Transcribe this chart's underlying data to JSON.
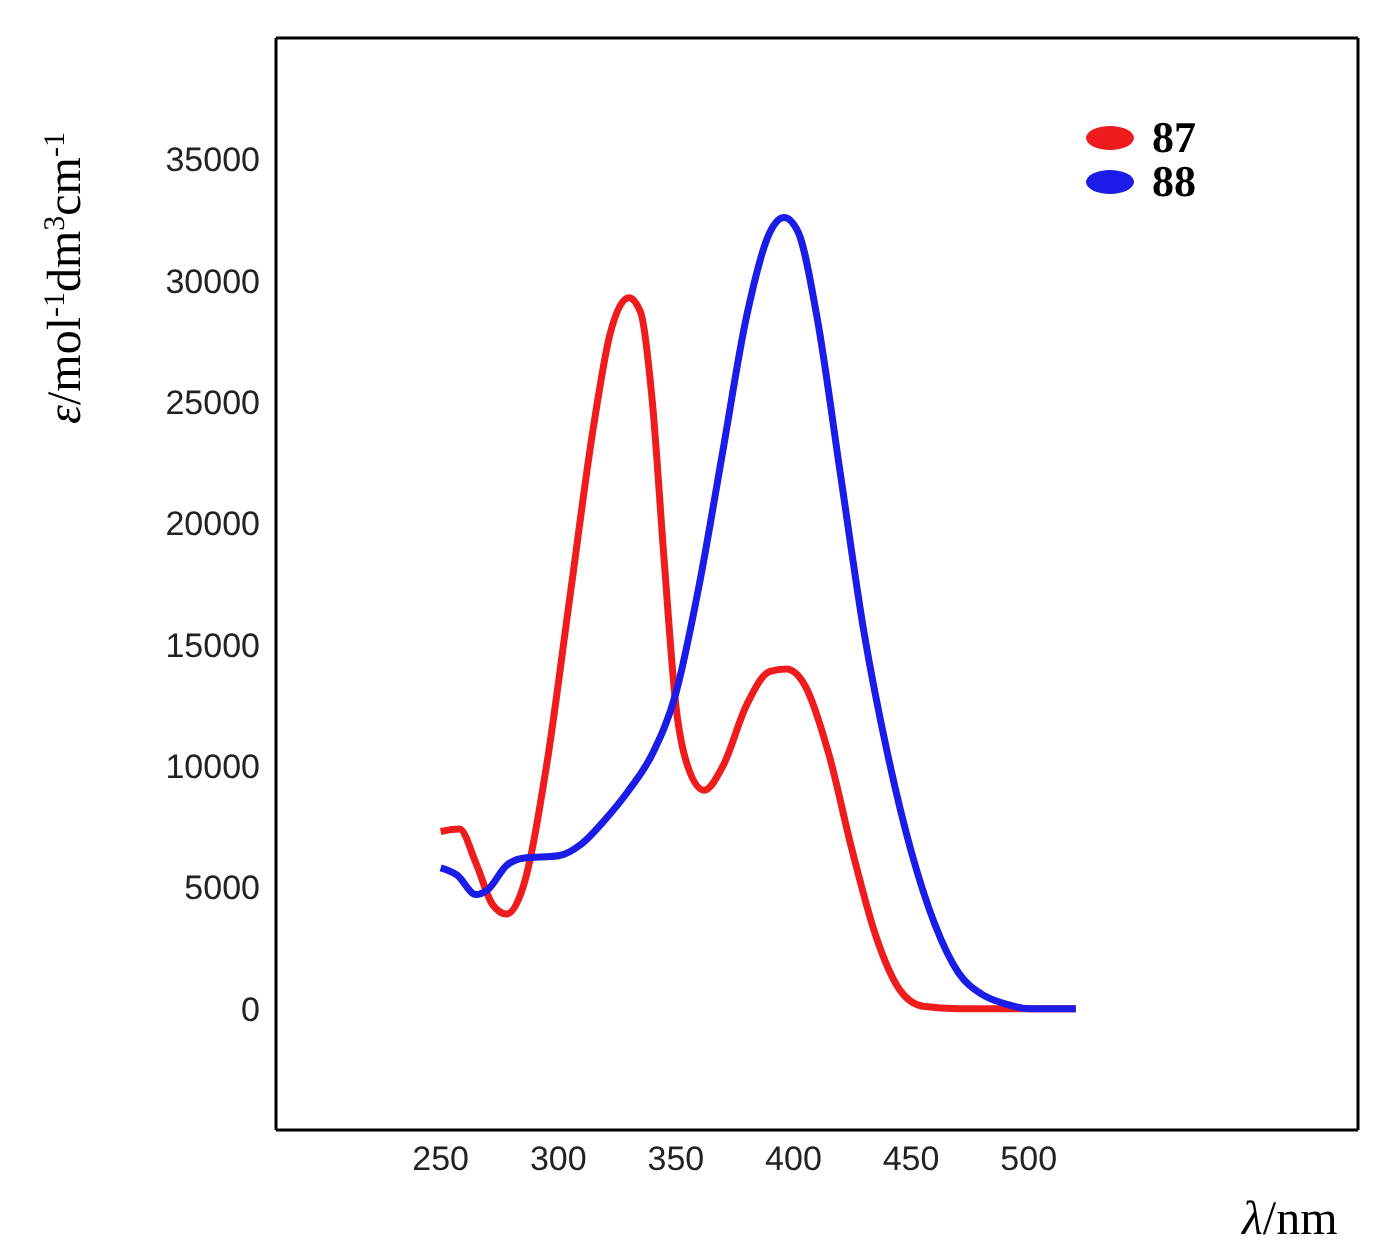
{
  "chart_data": {
    "type": "line",
    "xlabel": "λ/nm",
    "ylabel": "ε/mol$^{-1}$dm$^{3}$cm$^{-1}$",
    "xlim": [
      180,
      640
    ],
    "xticks": [
      250,
      300,
      350,
      400,
      450,
      500
    ],
    "ylim": [
      -5000,
      40000
    ],
    "yticks": [
      0,
      5000,
      10000,
      15000,
      20000,
      25000,
      30000,
      35000
    ],
    "grid": false,
    "legend": "top right",
    "marker": "none",
    "line_style": "solid",
    "series": [
      {
        "name": "87",
        "color": "#ee1c1c",
        "x": [
          250,
          258,
          265,
          272,
          278,
          285,
          295,
          305,
          315,
          322,
          330,
          335,
          340,
          345,
          350,
          355,
          362,
          370,
          380,
          390,
          397,
          405,
          415,
          425,
          435,
          445,
          455,
          470,
          520
        ],
        "values": [
          7300,
          7400,
          6000,
          4300,
          3900,
          5000,
          10000,
          17000,
          24000,
          27800,
          29300,
          28700,
          25000,
          18500,
          12500,
          10000,
          9000,
          10000,
          12500,
          13900,
          14000,
          13300,
          10500,
          6500,
          3000,
          800,
          100,
          0,
          0
        ]
      },
      {
        "name": "88",
        "color": "#1c1ce8",
        "x": [
          250,
          257,
          265,
          270,
          278,
          285,
          300,
          310,
          320,
          330,
          340,
          350,
          360,
          370,
          380,
          390,
          396,
          402,
          410,
          420,
          430,
          440,
          450,
          460,
          470,
          480,
          490,
          500,
          520
        ],
        "values": [
          5800,
          5500,
          4700,
          4900,
          5900,
          6200,
          6300,
          6800,
          7800,
          9000,
          10500,
          13000,
          17500,
          23000,
          28500,
          32000,
          32600,
          32000,
          28500,
          22000,
          15500,
          10500,
          6500,
          3500,
          1500,
          600,
          200,
          0,
          0
        ]
      }
    ]
  }
}
